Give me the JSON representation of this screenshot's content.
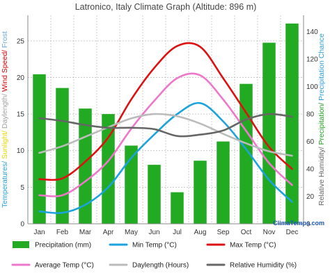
{
  "chart_data": {
    "type": "bar",
    "title": "Latronico, Italy Climate Graph (Altitude: 896 m)",
    "categories": [
      "Jan",
      "Feb",
      "Mar",
      "Apr",
      "May",
      "Jun",
      "Jul",
      "Aug",
      "Sep",
      "Oct",
      "Nov",
      "Dec"
    ],
    "left_axis": {
      "label_parts": [
        {
          "text": "Temperatures/ ",
          "color": "#2a9fd6"
        },
        {
          "text": "Sunlight/ ",
          "color": "#e8d500"
        },
        {
          "text": "Daylength/ ",
          "color": "#a0a0a0"
        },
        {
          "text": "Wind Speed/ ",
          "color": "#cc0000"
        },
        {
          "text": "Frost",
          "color": "#6fa8dc"
        }
      ],
      "ticks": [
        0,
        5,
        10,
        15,
        20,
        25
      ],
      "ylim": [
        0,
        28.5
      ]
    },
    "right_axis": {
      "label_parts": [
        {
          "text": "Relative Humidity/ ",
          "color": "#666666"
        },
        {
          "text": "Precipitation/ ",
          "color": "#1e9e1e"
        },
        {
          "text": "Precipitation Chance",
          "color": "#2a9fd6"
        }
      ],
      "ticks": [
        0,
        20,
        40,
        60,
        80,
        100,
        120,
        140
      ],
      "ylim": [
        0,
        152
      ]
    },
    "bars": {
      "name": "Precipitation (mm)",
      "color": "#22aa22",
      "axis": "right",
      "values": [
        109,
        99,
        84,
        80,
        57,
        43,
        23,
        46,
        60,
        102,
        132,
        146
      ]
    },
    "series": [
      {
        "name": "Min Temp (°C)",
        "color": "#1aa3dd",
        "axis": "left",
        "values": [
          1.7,
          1.5,
          2.6,
          5.0,
          9.0,
          12.2,
          15.0,
          16.5,
          14.0,
          10.2,
          6.0,
          3.0
        ]
      },
      {
        "name": "Max Temp (°C)",
        "color": "#dd1111",
        "axis": "left",
        "values": [
          6.1,
          6.2,
          8.5,
          11.8,
          17.0,
          21.3,
          24.3,
          24.2,
          19.9,
          15.2,
          10.5,
          7.5
        ]
      },
      {
        "name": "Average Temp (°C)",
        "color": "#ee77cc",
        "axis": "left",
        "values": [
          3.9,
          3.9,
          5.8,
          8.6,
          13.0,
          16.8,
          19.9,
          20.3,
          17.0,
          12.7,
          8.3,
          5.3
        ]
      },
      {
        "name": "Daylength (Hours)",
        "color": "#bbbbbb",
        "axis": "left",
        "values": [
          9.7,
          10.6,
          11.9,
          13.2,
          14.4,
          15.0,
          14.7,
          13.7,
          12.3,
          11.0,
          9.9,
          9.3
        ]
      },
      {
        "name": "Relative Humidity (%)",
        "color": "#666666",
        "axis": "right",
        "values": [
          77,
          75,
          72,
          70,
          70,
          69,
          64,
          65,
          68,
          76,
          80,
          78
        ]
      }
    ],
    "legend": [
      {
        "label": "Precipitation (mm)",
        "color": "#22aa22",
        "kind": "bar"
      },
      {
        "label": "Min Temp (°C)",
        "color": "#1aa3dd",
        "kind": "line"
      },
      {
        "label": "Max Temp (°C)",
        "color": "#dd1111",
        "kind": "line"
      },
      {
        "label": "Average Temp (°C)",
        "color": "#ee77cc",
        "kind": "line"
      },
      {
        "label": "Daylength (Hours)",
        "color": "#bbbbbb",
        "kind": "line"
      },
      {
        "label": "Relative Humidity (%)",
        "color": "#666666",
        "kind": "line"
      }
    ],
    "legend_placement": "bottom",
    "grid": true,
    "watermark": "ClimaTemps.com"
  }
}
